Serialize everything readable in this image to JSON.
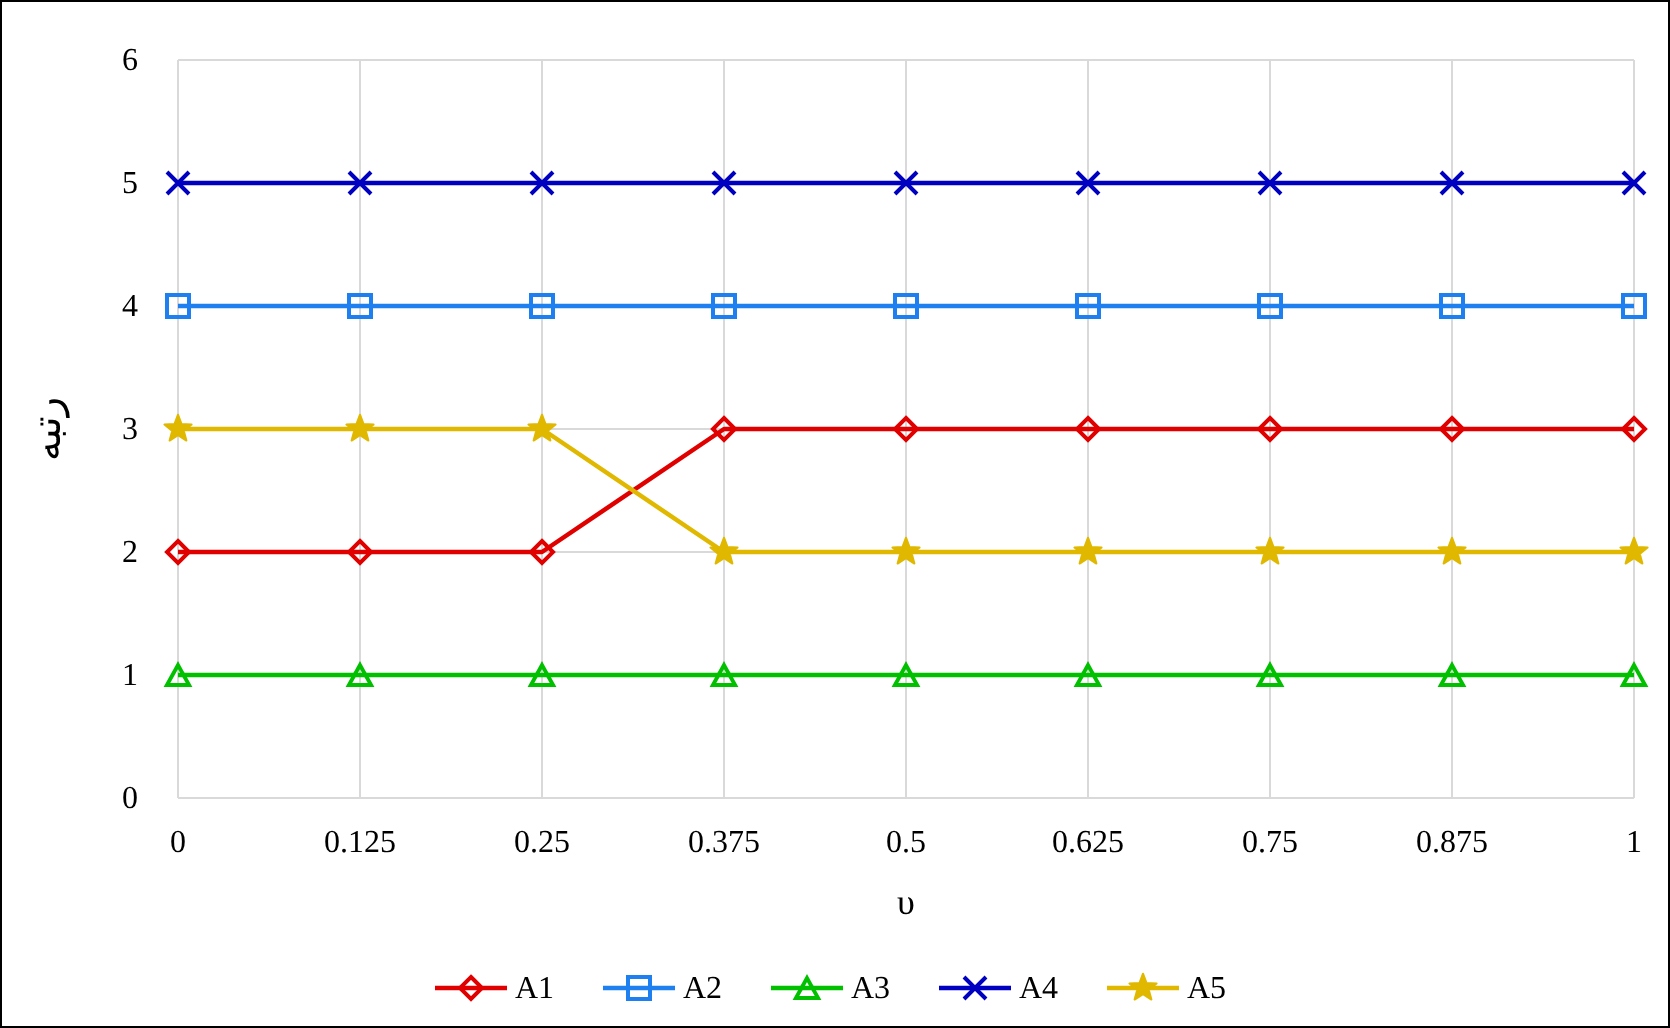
{
  "chart_data": {
    "type": "line",
    "xlabel": "υ",
    "ylabel": "رتبه",
    "x": [
      0,
      0.125,
      0.25,
      0.375,
      0.5,
      0.625,
      0.75,
      0.875,
      1
    ],
    "xlim": [
      0,
      1
    ],
    "xticks": [
      0,
      0.125,
      0.25,
      0.375,
      0.5,
      0.625,
      0.75,
      0.875,
      1
    ],
    "ylim": [
      0,
      6
    ],
    "yticks": [
      0,
      1,
      2,
      3,
      4,
      5,
      6
    ],
    "grid": true,
    "legend": "bottom",
    "line_style": "solid",
    "series": [
      {
        "name": "A1",
        "color": "#e00000",
        "marker": "diamond",
        "values": [
          2,
          2,
          2,
          3,
          3,
          3,
          3,
          3,
          3
        ]
      },
      {
        "name": "A2",
        "color": "#1e7ff0",
        "marker": "square",
        "values": [
          4,
          4,
          4,
          4,
          4,
          4,
          4,
          4,
          4
        ]
      },
      {
        "name": "A3",
        "color": "#00c000",
        "marker": "triangle",
        "values": [
          1,
          1,
          1,
          1,
          1,
          1,
          1,
          1,
          1
        ]
      },
      {
        "name": "A4",
        "color": "#0000c0",
        "marker": "cross",
        "values": [
          5,
          5,
          5,
          5,
          5,
          5,
          5,
          5,
          5
        ]
      },
      {
        "name": "A5",
        "color": "#e0b800",
        "marker": "star",
        "values": [
          3,
          3,
          3,
          2,
          2,
          2,
          2,
          2,
          2
        ]
      }
    ]
  }
}
